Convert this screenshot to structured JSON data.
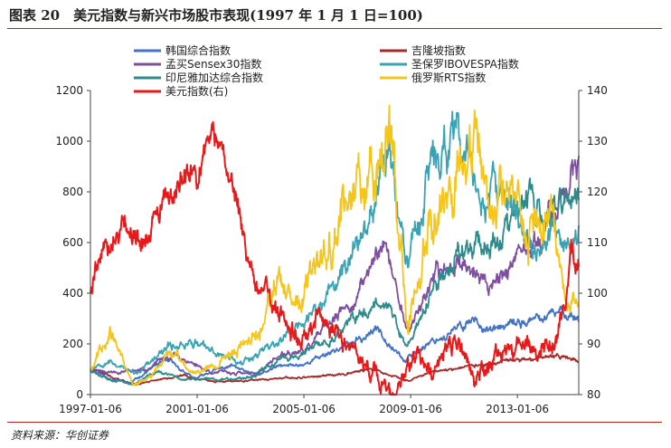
{
  "title": "图表 20　美元指数与新兴市场股市表现(1997 年 1 月 1 日=100)",
  "source": "资料来源：华创证券",
  "chart_data": {
    "type": "line",
    "left_axis": {
      "min": 0,
      "max": 1200,
      "ticks": [
        0,
        200,
        400,
        600,
        800,
        1000,
        1200
      ],
      "labels": [
        "0",
        "200",
        "400",
        "600",
        "800",
        "1000",
        "1200"
      ]
    },
    "right_axis": {
      "min": 80,
      "max": 140,
      "ticks": [
        80,
        90,
        100,
        110,
        120,
        130,
        140
      ],
      "labels": [
        "80",
        "90",
        "100",
        "110",
        "120",
        "130",
        "140"
      ]
    },
    "x_axis": {
      "start": 1997.0,
      "end": 2015.3,
      "ticks": [
        1997.0,
        2001.0,
        2005.0,
        2009.0,
        2013.0
      ],
      "labels": [
        "1997-01-06",
        "2001-01-06",
        "2005-01-06",
        "2009-01-06",
        "2013-01-06"
      ]
    },
    "series": [
      {
        "name": "韩国综合指数",
        "color": "#4472c4",
        "axis": "left",
        "noise": 0.035,
        "seed": 11,
        "points": [
          [
            1997.0,
            100
          ],
          [
            1997.8,
            60
          ],
          [
            1998.5,
            45
          ],
          [
            1999.5,
            120
          ],
          [
            2000.0,
            130
          ],
          [
            2000.9,
            60
          ],
          [
            2001.5,
            90
          ],
          [
            2002.3,
            115
          ],
          [
            2003.2,
            70
          ],
          [
            2004.0,
            110
          ],
          [
            2005.0,
            120
          ],
          [
            2006.0,
            170
          ],
          [
            2007.0,
            210
          ],
          [
            2007.8,
            260
          ],
          [
            2008.8,
            130
          ],
          [
            2009.7,
            210
          ],
          [
            2010.5,
            240
          ],
          [
            2011.3,
            300
          ],
          [
            2012.0,
            250
          ],
          [
            2013.0,
            280
          ],
          [
            2014.0,
            300
          ],
          [
            2014.7,
            330
          ],
          [
            2015.3,
            300
          ]
        ]
      },
      {
        "name": "孟买Sensex30指数",
        "color": "#7d4f9e",
        "axis": "left",
        "noise": 0.04,
        "seed": 23,
        "points": [
          [
            1997.0,
            100
          ],
          [
            1998.0,
            90
          ],
          [
            1999.0,
            100
          ],
          [
            2000.1,
            160
          ],
          [
            2001.5,
            90
          ],
          [
            2003.2,
            80
          ],
          [
            2004.0,
            150
          ],
          [
            2005.0,
            170
          ],
          [
            2006.0,
            280
          ],
          [
            2007.0,
            380
          ],
          [
            2007.95,
            620
          ],
          [
            2008.9,
            250
          ],
          [
            2009.8,
            450
          ],
          [
            2010.8,
            540
          ],
          [
            2011.9,
            430
          ],
          [
            2012.5,
            490
          ],
          [
            2013.5,
            560
          ],
          [
            2014.5,
            740
          ],
          [
            2015.0,
            880
          ],
          [
            2015.3,
            850
          ]
        ]
      },
      {
        "name": "印尼雅加达综合指数",
        "color": "#2e8b8b",
        "axis": "left",
        "noise": 0.045,
        "seed": 37,
        "points": [
          [
            1997.0,
            100
          ],
          [
            1997.8,
            60
          ],
          [
            1998.6,
            40
          ],
          [
            1999.5,
            90
          ],
          [
            2000.5,
            60
          ],
          [
            2001.8,
            60
          ],
          [
            2003.0,
            70
          ],
          [
            2004.0,
            130
          ],
          [
            2005.0,
            160
          ],
          [
            2006.0,
            220
          ],
          [
            2007.0,
            300
          ],
          [
            2008.0,
            390
          ],
          [
            2008.85,
            180
          ],
          [
            2009.8,
            400
          ],
          [
            2010.8,
            560
          ],
          [
            2011.5,
            620
          ],
          [
            2012.0,
            580
          ],
          [
            2013.0,
            700
          ],
          [
            2013.5,
            780
          ],
          [
            2014.0,
            650
          ],
          [
            2014.8,
            780
          ],
          [
            2015.3,
            760
          ]
        ]
      },
      {
        "name": "吉隆坡指数",
        "color": "#a52a2a",
        "axis": "left",
        "noise": 0.03,
        "seed": 41,
        "points": [
          [
            1997.0,
            100
          ],
          [
            1997.8,
            70
          ],
          [
            1998.7,
            40
          ],
          [
            1999.5,
            60
          ],
          [
            2000.5,
            75
          ],
          [
            2001.7,
            50
          ],
          [
            2003.0,
            55
          ],
          [
            2004.5,
            65
          ],
          [
            2006.0,
            75
          ],
          [
            2007.5,
            100
          ],
          [
            2008.9,
            55
          ],
          [
            2009.8,
            90
          ],
          [
            2011.0,
            110
          ],
          [
            2012.0,
            120
          ],
          [
            2013.5,
            140
          ],
          [
            2014.5,
            150
          ],
          [
            2015.3,
            135
          ]
        ]
      },
      {
        "name": "圣保罗IBOVESPA指数",
        "color": "#3aa3b3",
        "axis": "left",
        "noise": 0.05,
        "seed": 53,
        "points": [
          [
            1997.0,
            100
          ],
          [
            1997.6,
            140
          ],
          [
            1998.7,
            80
          ],
          [
            1999.2,
            120
          ],
          [
            2000.0,
            190
          ],
          [
            2000.8,
            210
          ],
          [
            2001.5,
            170
          ],
          [
            2002.7,
            130
          ],
          [
            2003.5,
            180
          ],
          [
            2004.2,
            220
          ],
          [
            2005.0,
            280
          ],
          [
            2006.0,
            400
          ],
          [
            2007.0,
            600
          ],
          [
            2008.2,
            1000
          ],
          [
            2008.85,
            500
          ],
          [
            2009.6,
            850
          ],
          [
            2010.4,
            1000
          ],
          [
            2011.0,
            950
          ],
          [
            2011.8,
            750
          ],
          [
            2012.3,
            800
          ],
          [
            2013.0,
            700
          ],
          [
            2013.7,
            560
          ],
          [
            2014.3,
            620
          ],
          [
            2014.9,
            600
          ],
          [
            2015.3,
            620
          ]
        ]
      },
      {
        "name": "俄罗斯RTS指数",
        "color": "#f5c518",
        "axis": "left",
        "noise": 0.07,
        "seed": 67,
        "points": [
          [
            1997.0,
            100
          ],
          [
            1997.7,
            260
          ],
          [
            1998.6,
            40
          ],
          [
            1999.3,
            70
          ],
          [
            2000.0,
            170
          ],
          [
            2000.8,
            90
          ],
          [
            2001.7,
            120
          ],
          [
            2002.5,
            180
          ],
          [
            2003.3,
            250
          ],
          [
            2003.9,
            440
          ],
          [
            2004.6,
            330
          ],
          [
            2005.2,
            420
          ],
          [
            2006.0,
            640
          ],
          [
            2006.7,
            780
          ],
          [
            2007.5,
            900
          ],
          [
            2008.2,
            1120
          ],
          [
            2008.9,
            260
          ],
          [
            2009.5,
            600
          ],
          [
            2010.3,
            850
          ],
          [
            2010.9,
            900
          ],
          [
            2011.4,
            1000
          ],
          [
            2012.0,
            700
          ],
          [
            2012.5,
            800
          ],
          [
            2013.0,
            720
          ],
          [
            2013.6,
            650
          ],
          [
            2014.3,
            680
          ],
          [
            2014.8,
            420
          ],
          [
            2015.3,
            360
          ]
        ]
      },
      {
        "name": "美元指数(右)",
        "color": "#e8191a",
        "axis": "right",
        "noise": 0.012,
        "seed": 79,
        "points": [
          [
            1997.0,
            100
          ],
          [
            1997.3,
            107
          ],
          [
            1997.8,
            111
          ],
          [
            1998.3,
            115
          ],
          [
            1998.8,
            110
          ],
          [
            1999.3,
            113
          ],
          [
            1999.9,
            118
          ],
          [
            2000.5,
            123
          ],
          [
            2001.0,
            124
          ],
          [
            2001.5,
            131
          ],
          [
            2002.0,
            128
          ],
          [
            2002.5,
            118
          ],
          [
            2003.0,
            104
          ],
          [
            2003.5,
            100
          ],
          [
            2004.0,
            96
          ],
          [
            2004.8,
            90
          ],
          [
            2005.5,
            96
          ],
          [
            2006.2,
            92
          ],
          [
            2007.0,
            88
          ],
          [
            2007.8,
            82
          ],
          [
            2008.3,
            80
          ],
          [
            2008.7,
            82
          ],
          [
            2009.2,
            88
          ],
          [
            2009.8,
            83
          ],
          [
            2010.3,
            88
          ],
          [
            2010.8,
            90
          ],
          [
            2011.4,
            83
          ],
          [
            2011.8,
            85
          ],
          [
            2012.5,
            88
          ],
          [
            2013.2,
            90
          ],
          [
            2013.8,
            89
          ],
          [
            2014.4,
            90
          ],
          [
            2014.8,
            97
          ],
          [
            2015.0,
            108
          ],
          [
            2015.3,
            105
          ]
        ]
      }
    ]
  }
}
